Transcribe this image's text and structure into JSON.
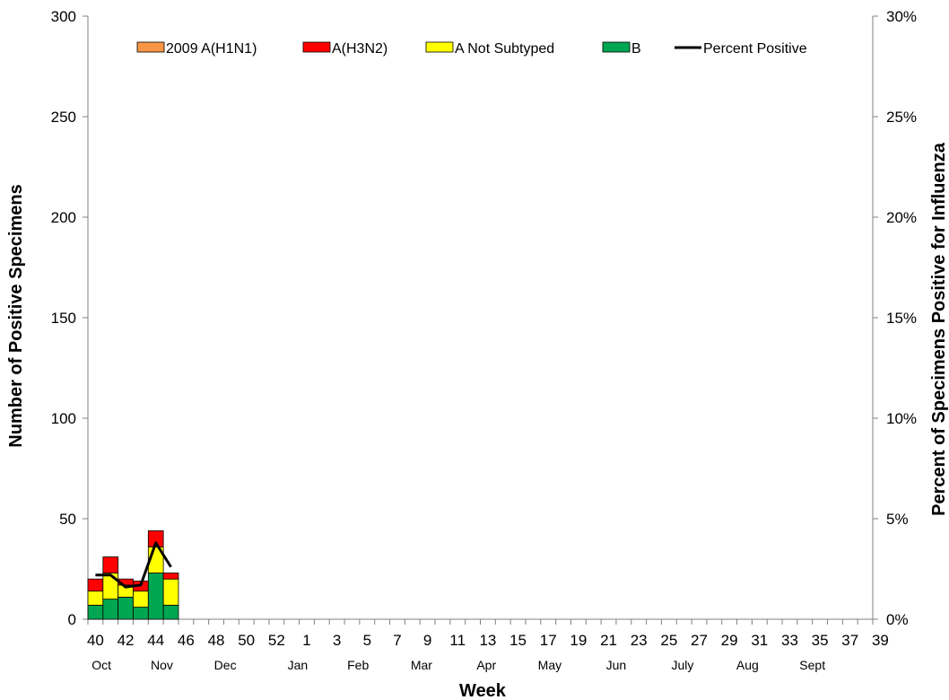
{
  "chart_data": {
    "type": "bar",
    "stacked": true,
    "xlabel": "Week",
    "ylabel": "Number of Positive Specimens",
    "y2label": "Percent of Specimens Positive for Influenza",
    "ylim": [
      0,
      300
    ],
    "y2lim": [
      0,
      30
    ],
    "yticks": [
      "0",
      "50",
      "100",
      "150",
      "200",
      "250",
      "300"
    ],
    "y2ticks": [
      "0%",
      "5%",
      "10%",
      "15%",
      "20%",
      "25%",
      "30%"
    ],
    "week_labels": [
      "40",
      "42",
      "44",
      "46",
      "48",
      "50",
      "52",
      "1",
      "3",
      "5",
      "7",
      "9",
      "11",
      "13",
      "15",
      "17",
      "19",
      "21",
      "23",
      "25",
      "27",
      "29",
      "31",
      "33",
      "35",
      "37",
      "39"
    ],
    "month_labels": [
      "Oct",
      "Nov",
      "Dec",
      "Jan",
      "Feb",
      "Mar",
      "Apr",
      "May",
      "Jun",
      "July",
      "Aug",
      "Sept"
    ],
    "categories": [
      "40",
      "41",
      "42",
      "43",
      "44",
      "45"
    ],
    "series": [
      {
        "name": "2009 A(H1N1)",
        "color": "#F79646",
        "values": [
          0,
          0,
          0,
          0,
          0,
          0
        ]
      },
      {
        "name": "A(H3N2)",
        "color": "#FF0000",
        "values": [
          6,
          8,
          3,
          5,
          8,
          3
        ]
      },
      {
        "name": "A Not Subtyped",
        "color": "#FFFF00",
        "values": [
          7,
          13,
          6,
          8,
          13,
          13
        ]
      },
      {
        "name": "B",
        "color": "#00A651",
        "values": [
          7,
          10,
          11,
          6,
          23,
          7
        ]
      }
    ],
    "line_series": {
      "name": "Percent Positive",
      "color": "#000000",
      "values": [
        2.2,
        2.2,
        1.6,
        1.7,
        3.8,
        2.6
      ]
    },
    "legend": "top",
    "grid": false
  }
}
